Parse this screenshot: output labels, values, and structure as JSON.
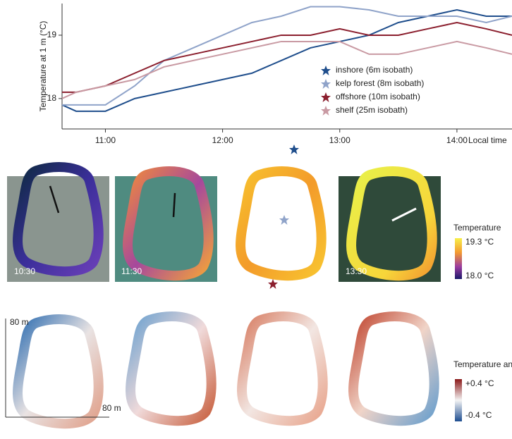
{
  "chart_data": {
    "type": "line",
    "y_label": "Temperature at 1 m (°C)",
    "x_label": "Local time",
    "x": [
      10.63,
      10.75,
      11,
      11.25,
      11.5,
      11.75,
      12,
      12.25,
      12.5,
      12.75,
      13,
      13.25,
      13.5,
      13.75,
      14,
      14.25,
      14.47
    ],
    "xlim": [
      10.63,
      14.47
    ],
    "xticks": [
      {
        "value": 11,
        "label": "11:00"
      },
      {
        "value": 12,
        "label": "12:00"
      },
      {
        "value": 13,
        "label": "13:00"
      },
      {
        "value": 14,
        "label": "14:00"
      }
    ],
    "ylim": [
      17.52,
      19.5
    ],
    "yticks": [
      18,
      19
    ],
    "legend": "center-right",
    "series": [
      {
        "name": "inshore (6m isobath)",
        "color": "#1f4e8c",
        "values": [
          17.9,
          17.8,
          17.8,
          18.0,
          18.1,
          18.2,
          18.3,
          18.4,
          18.6,
          18.8,
          18.9,
          19.0,
          19.2,
          19.3,
          19.4,
          19.3,
          19.3
        ]
      },
      {
        "name": "kelp forest (8m isobath)",
        "color": "#8fa3c9",
        "values": [
          17.9,
          17.9,
          17.9,
          18.2,
          18.6,
          18.8,
          19.0,
          19.2,
          19.3,
          19.45,
          19.45,
          19.4,
          19.3,
          19.3,
          19.3,
          19.2,
          19.3
        ]
      },
      {
        "name": "offshore (10m isobath)",
        "color": "#8b1f2e",
        "values": [
          18.1,
          18.1,
          18.2,
          18.4,
          18.6,
          18.7,
          18.8,
          18.9,
          19.0,
          19.0,
          19.1,
          19.0,
          19.0,
          19.1,
          19.2,
          19.1,
          19.0
        ]
      },
      {
        "name": "shelf (25m isobath)",
        "color": "#c99aa3",
        "values": [
          18.0,
          18.1,
          18.2,
          18.3,
          18.5,
          18.6,
          18.7,
          18.8,
          18.9,
          18.9,
          18.9,
          18.7,
          18.7,
          18.8,
          18.9,
          18.8,
          18.7
        ]
      }
    ]
  },
  "panels": {
    "times": [
      "10:30",
      "11:30",
      "13:30"
    ],
    "temperature_bar": {
      "title": "Temperature",
      "max": "19.3 °C",
      "min": "18.0 °C"
    },
    "anomaly_bar": {
      "title": "Temperature anomaly",
      "max": "+0.4 °C",
      "min": "-0.4 °C"
    },
    "scale": {
      "y": "80 m",
      "x": "80 m"
    }
  }
}
